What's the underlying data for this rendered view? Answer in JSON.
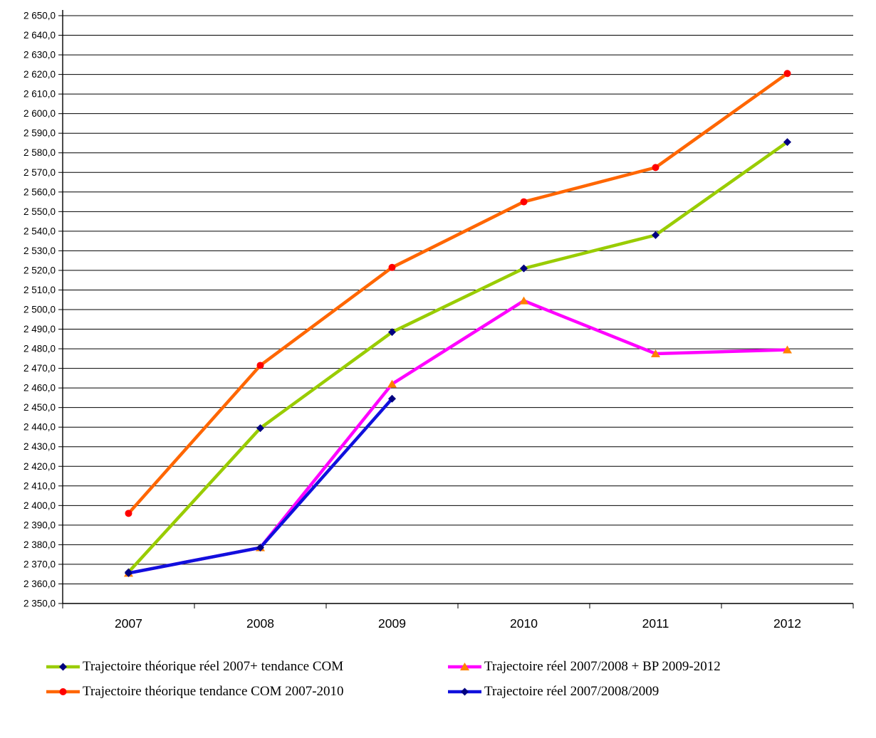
{
  "chart_data": {
    "type": "line",
    "title": "",
    "xlabel": "",
    "ylabel": "",
    "categories": [
      "2007",
      "2008",
      "2009",
      "2010",
      "2011",
      "2012"
    ],
    "series": [
      {
        "name": "Trajectoire théorique réel 2007+ tendance COM",
        "color": "#99CC00",
        "marker": "diamond",
        "marker_color": "#000080",
        "values": [
          2366,
          2439.5,
          2488.5,
          2521,
          2538,
          2585.5
        ]
      },
      {
        "name": "Trajectoire théorique tendance COM 2007-2010",
        "color": "#FF6600",
        "marker": "circle",
        "marker_color": "#FF0000",
        "values": [
          2396,
          2471.5,
          2521.5,
          2555,
          2572.5,
          2620.5
        ]
      },
      {
        "name": "Trajectoire réel 2007/2008 + BP 2009-2012",
        "color": "#FF00FF",
        "marker": "triangle",
        "marker_color": "#FF8000",
        "values": [
          2365.5,
          2378.5,
          2462,
          2504.5,
          2477.5,
          2479.5
        ]
      },
      {
        "name": "Trajectoire réel 2007/2008/2009",
        "color": "#1010DD",
        "marker": "diamond",
        "marker_color": "#000080",
        "values": [
          2365.5,
          2378.5,
          2454.5,
          null,
          null,
          null
        ]
      }
    ],
    "ylim": [
      2350,
      2650
    ],
    "ytick_step": 10,
    "ytick_labels": [
      "2 350,0",
      "2 360,0",
      "2 370,0",
      "2 380,0",
      "2 390,0",
      "2 400,0",
      "2 410,0",
      "2 420,0",
      "2 430,0",
      "2 440,0",
      "2 450,0",
      "2 460,0",
      "2 470,0",
      "2 480,0",
      "2 490,0",
      "2 500,0",
      "2 510,0",
      "2 520,0",
      "2 530,0",
      "2 540,0",
      "2 550,0",
      "2 560,0",
      "2 570,0",
      "2 580,0",
      "2 590,0",
      "2 600,0",
      "2 610,0",
      "2 620,0",
      "2 630,0",
      "2 640,0",
      "2 650,0"
    ],
    "grid": "horizontal",
    "legend_position": "bottom, two columns",
    "axis_color": "#000000",
    "grid_color": "#000000",
    "background_color": "#FFFFFF"
  }
}
